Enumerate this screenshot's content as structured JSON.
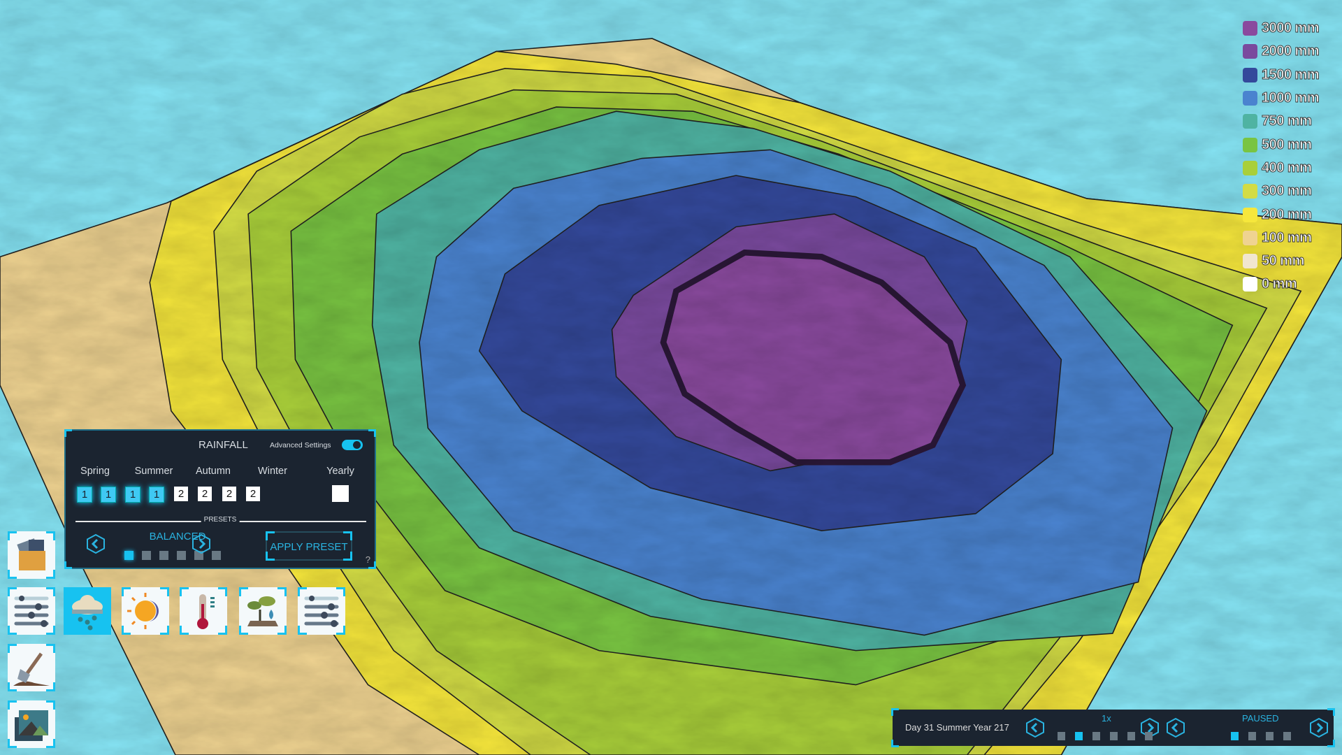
{
  "legend": [
    {
      "label": "3000 mm",
      "color": "#8a4a9e"
    },
    {
      "label": "2000 mm",
      "color": "#7a4a9e"
    },
    {
      "label": "1500 mm",
      "color": "#34499b"
    },
    {
      "label": "1000 mm",
      "color": "#4a83cf"
    },
    {
      "label": "750 mm",
      "color": "#4fb3a2"
    },
    {
      "label": "500 mm",
      "color": "#79c442"
    },
    {
      "label": "400 mm",
      "color": "#a9cf3a"
    },
    {
      "label": "300 mm",
      "color": "#d3dc45"
    },
    {
      "label": "200 mm",
      "color": "#f6e73c"
    },
    {
      "label": "100 mm",
      "color": "#efd391"
    },
    {
      "label": "50 mm",
      "color": "#f1e6cf"
    },
    {
      "label": "0 mm",
      "color": "#ffffff"
    }
  ],
  "rainfall_panel": {
    "title": "RAINFALL",
    "advanced_settings_label": "Advanced Settings",
    "advanced_settings_on": true,
    "seasons": [
      "Spring",
      "Summer",
      "Autumn",
      "Winter",
      "Yearly"
    ],
    "values": [
      {
        "value": "1",
        "active": true
      },
      {
        "value": "1",
        "active": true
      },
      {
        "value": "1",
        "active": true
      },
      {
        "value": "1",
        "active": true
      },
      {
        "value": "2",
        "active": false
      },
      {
        "value": "2",
        "active": false
      },
      {
        "value": "2",
        "active": false
      },
      {
        "value": "2",
        "active": false
      }
    ],
    "yearly_value": "",
    "presets_label": "PRESETS",
    "preset_name": "BALANCED",
    "preset_selected_index": 0,
    "preset_count": 6,
    "apply_label": "APPLY PRESET",
    "help": "?"
  },
  "toolbar": {
    "tools": [
      "folder-files-icon",
      "sliders-icon",
      "rain-cloud-icon",
      "sun-moon-icon",
      "thermometer-icon",
      "plant-water-icon",
      "sliders-alt-icon",
      "shovel-icon",
      "gallery-icon"
    ],
    "active": "rain-cloud-icon"
  },
  "time_bar": {
    "date": "Day 31 Summer Year 217",
    "speed": "1x",
    "speed_selected_index": 1,
    "speed_count": 6,
    "state": "PAUSED",
    "state_selected_index": 0,
    "state_count": 4
  },
  "colors": {
    "accent": "#17c2f0",
    "panel_bg": "#1b2430",
    "sky": "#86e4f4"
  }
}
